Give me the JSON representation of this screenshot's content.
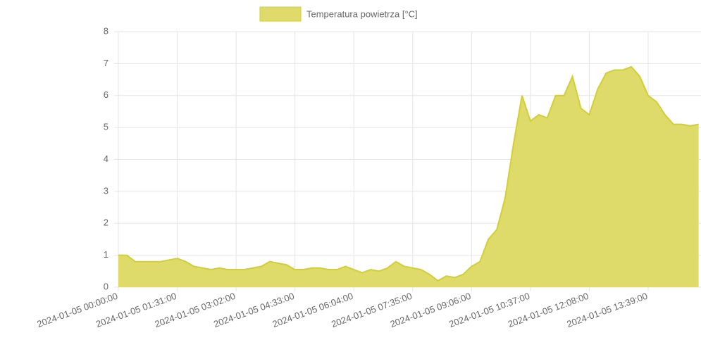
{
  "chart_data": {
    "type": "area",
    "series": [
      {
        "name": "Temperatura powietrza [°C]",
        "color": "#dedb6a",
        "border": "#d2cf2e",
        "values": [
          1.0,
          1.0,
          0.8,
          0.8,
          0.8,
          0.8,
          0.85,
          0.9,
          0.8,
          0.65,
          0.6,
          0.55,
          0.6,
          0.55,
          0.55,
          0.55,
          0.6,
          0.65,
          0.8,
          0.75,
          0.7,
          0.55,
          0.55,
          0.6,
          0.6,
          0.55,
          0.55,
          0.65,
          0.55,
          0.45,
          0.55,
          0.5,
          0.6,
          0.8,
          0.65,
          0.6,
          0.55,
          0.4,
          0.2,
          0.35,
          0.3,
          0.4,
          0.65,
          0.8,
          1.5,
          1.8,
          2.8,
          4.5,
          6.0,
          5.2,
          5.4,
          5.3,
          6.0,
          6.0,
          6.6,
          5.6,
          5.4,
          6.2,
          6.7,
          6.8,
          6.8,
          6.9,
          6.6,
          6.0,
          5.8,
          5.4,
          5.1,
          5.1,
          5.05,
          5.1
        ]
      }
    ],
    "categories": [
      "2024-01-05 00:00:00",
      null,
      null,
      null,
      null,
      null,
      null,
      "2024-01-05 01:31:00",
      null,
      null,
      null,
      null,
      null,
      null,
      "2024-01-05 03:02:00",
      null,
      null,
      null,
      null,
      null,
      null,
      "2024-01-05 04:33:00",
      null,
      null,
      null,
      null,
      null,
      null,
      "2024-01-05 06:04:00",
      null,
      null,
      null,
      null,
      null,
      null,
      "2024-01-05 07:35:00",
      null,
      null,
      null,
      null,
      null,
      null,
      "2024-01-05 09:06:00",
      null,
      null,
      null,
      null,
      null,
      null,
      "2024-01-05 10:37:00",
      null,
      null,
      null,
      null,
      null,
      null,
      "2024-01-05 12:08:00",
      null,
      null,
      null,
      null,
      null,
      null,
      "2024-01-05 13:39:00",
      null,
      null,
      null,
      null,
      null,
      null
    ],
    "ylim": [
      0,
      8
    ],
    "yticks": [
      0,
      1,
      2,
      3,
      4,
      5,
      6,
      7,
      8
    ],
    "grid": true
  }
}
